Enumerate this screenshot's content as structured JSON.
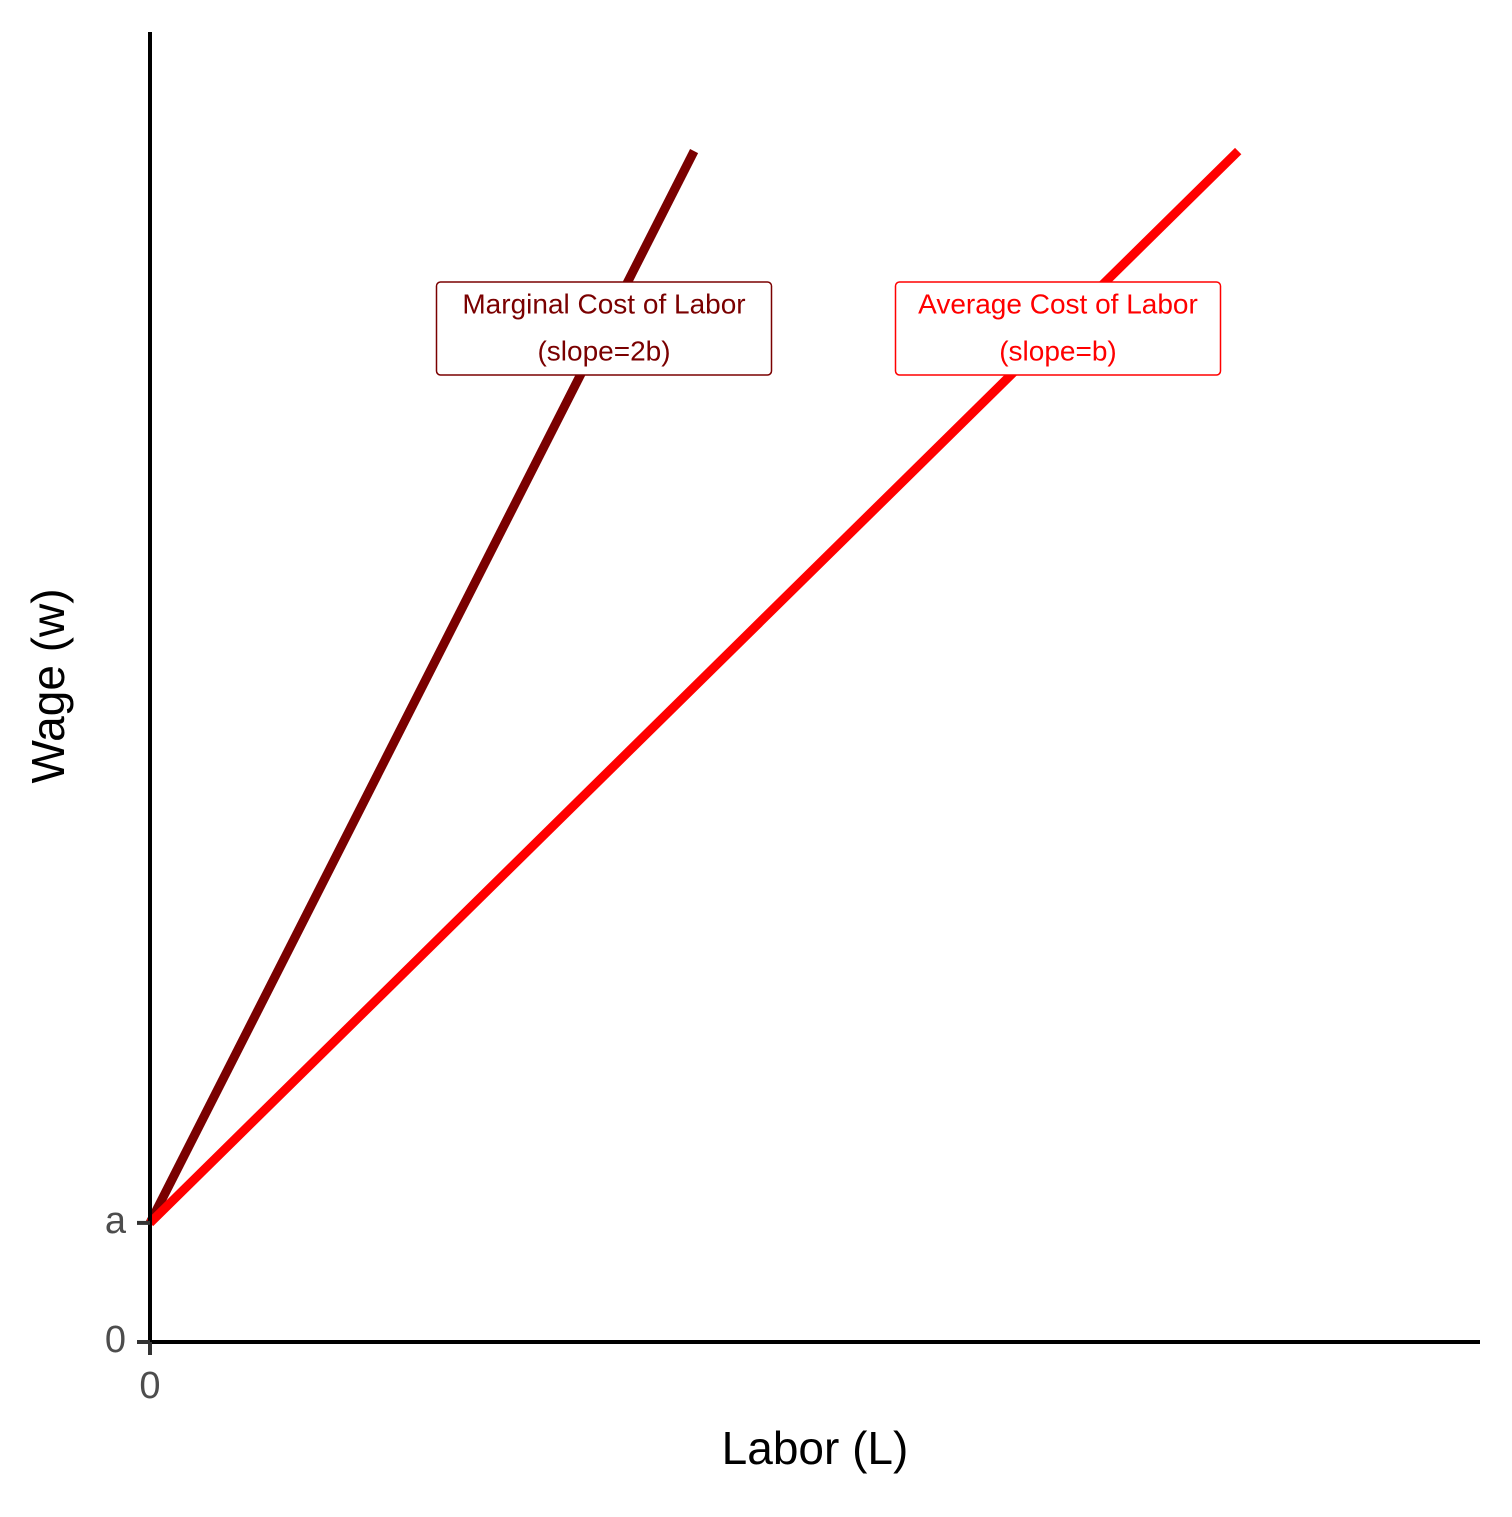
{
  "chart_data": {
    "type": "line",
    "x_label": "Labor (L)",
    "y_label": "Wage (w)",
    "xlim": [
      0,
      11
    ],
    "ylim": [
      0,
      11
    ],
    "xticks": [
      0
    ],
    "yticks": [
      0,
      {
        "value": 1,
        "label": "a"
      }
    ],
    "series": [
      {
        "name": "Marginal Cost of Labor",
        "note": "(slope=2b)",
        "color": "#7a0000",
        "x": [
          0,
          4.5
        ],
        "values": [
          1,
          10
        ]
      },
      {
        "name": "Average Cost of Labor",
        "note": "(slope=b)",
        "color": "#ff0000",
        "x": [
          0,
          9
        ],
        "values": [
          1,
          10
        ]
      }
    ]
  }
}
